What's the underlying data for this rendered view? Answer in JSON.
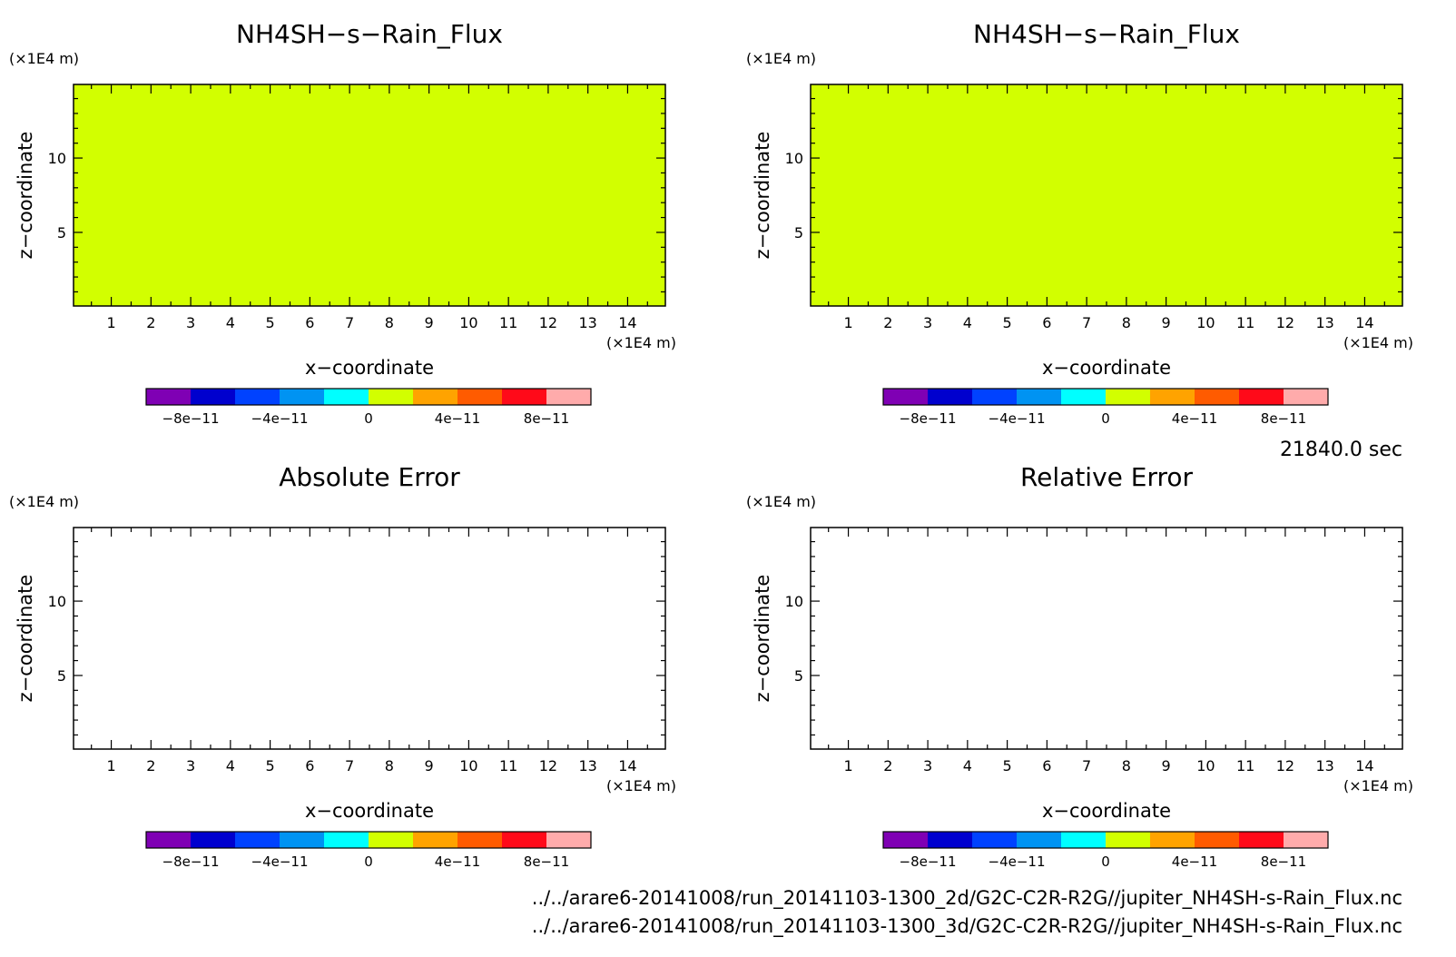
{
  "time_label": "21840.0 sec",
  "files": [
    "../../arare6-20141008/run_20141103-1300_2d/G2C-C2R-R2G//jupiter_NH4SH-s-Rain_Flux.nc",
    "../../arare6-20141008/run_20141103-1300_3d/G2C-C2R-R2G//jupiter_NH4SH-s-Rain_Flux.nc"
  ],
  "colorbar": {
    "colors": [
      "#7f00b4",
      "#0000ce",
      "#0042ff",
      "#0093f2",
      "#00ffff",
      "#d2ff00",
      "#ffa300",
      "#ff5b00",
      "#ff0a19",
      "#ffabab"
    ],
    "ticks": [
      {
        "value": -8e-11,
        "label": "−8e−11"
      },
      {
        "value": -4e-11,
        "label": "−4e−11"
      },
      {
        "value": 0,
        "label": "0"
      },
      {
        "value": 4e-11,
        "label": "4e−11"
      },
      {
        "value": 8e-11,
        "label": "8e−11"
      }
    ],
    "range": [
      -1e-10,
      1e-10
    ]
  },
  "chart_data": [
    {
      "type": "heatmap",
      "title": "NH4SH−s−Rain_Flux",
      "xlabel": "x−coordinate",
      "ylabel": "z−coordinate",
      "x_unit": "(×1E4 m)",
      "y_unit": "(×1E4 m)",
      "xlim": [
        0.05,
        14.95
      ],
      "ylim": [
        0.05,
        14.95
      ],
      "xticks": [
        "1",
        "2",
        "3",
        "4",
        "5",
        "6",
        "7",
        "8",
        "9",
        "10",
        "11",
        "12",
        "13",
        "14"
      ],
      "yticks": [
        "5",
        "10"
      ],
      "field_value": 0,
      "fill_color": "#d2ff00"
    },
    {
      "type": "heatmap",
      "title": "NH4SH−s−Rain_Flux",
      "xlabel": "x−coordinate",
      "ylabel": "z−coordinate",
      "x_unit": "(×1E4 m)",
      "y_unit": "(×1E4 m)",
      "xlim": [
        0.05,
        14.95
      ],
      "ylim": [
        0.05,
        14.95
      ],
      "xticks": [
        "1",
        "2",
        "3",
        "4",
        "5",
        "6",
        "7",
        "8",
        "9",
        "10",
        "11",
        "12",
        "13",
        "14"
      ],
      "yticks": [
        "5",
        "10"
      ],
      "field_value": 0,
      "fill_color": "#d2ff00"
    },
    {
      "type": "heatmap",
      "title": "Absolute Error",
      "xlabel": "x−coordinate",
      "ylabel": "z−coordinate",
      "x_unit": "(×1E4 m)",
      "y_unit": "(×1E4 m)",
      "xlim": [
        0.05,
        14.95
      ],
      "ylim": [
        0.05,
        14.95
      ],
      "xticks": [
        "1",
        "2",
        "3",
        "4",
        "5",
        "6",
        "7",
        "8",
        "9",
        "10",
        "11",
        "12",
        "13",
        "14"
      ],
      "yticks": [
        "5",
        "10"
      ],
      "field_value": null,
      "fill_color": "#ffffff"
    },
    {
      "type": "heatmap",
      "title": "Relative Error",
      "xlabel": "x−coordinate",
      "ylabel": "z−coordinate",
      "x_unit": "(×1E4 m)",
      "y_unit": "(×1E4 m)",
      "xlim": [
        0.05,
        14.95
      ],
      "ylim": [
        0.05,
        14.95
      ],
      "xticks": [
        "1",
        "2",
        "3",
        "4",
        "5",
        "6",
        "7",
        "8",
        "9",
        "10",
        "11",
        "12",
        "13",
        "14"
      ],
      "yticks": [
        "5",
        "10"
      ],
      "field_value": null,
      "fill_color": "#ffffff"
    }
  ]
}
